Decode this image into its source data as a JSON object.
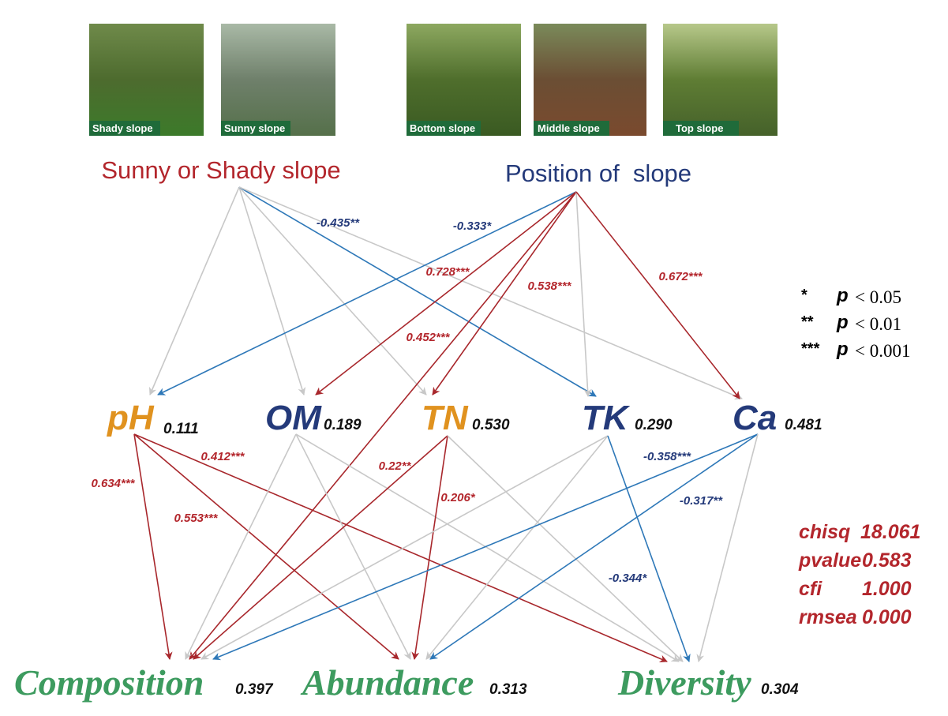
{
  "photos": [
    "Shady slope",
    "Sunny slope",
    "Bottom slope",
    "Middle slope",
    "Top slope"
  ],
  "drivers": [
    "Sunny or Shady slope",
    "Position of  slope"
  ],
  "soil": [
    {
      "name": "pH",
      "r2": "0.111"
    },
    {
      "name": "OM",
      "r2": "0.189"
    },
    {
      "name": "TN",
      "r2": "0.530"
    },
    {
      "name": "TK",
      "r2": "0.290"
    },
    {
      "name": "Ca",
      "r2": "0.481"
    }
  ],
  "outcomes": [
    {
      "name": "Composition",
      "r2": "0.397"
    },
    {
      "name": "Abundance",
      "r2": "0.313"
    },
    {
      "name": "Diversity",
      "r2": "0.304"
    }
  ],
  "path_labels": [
    "-0.435**",
    "-0.333*",
    "0.728***",
    "0.538***",
    "0.672***",
    "0.452***",
    "0.634***",
    "0.553***",
    "0.412***",
    "0.22**",
    "0.206*",
    "-0.344*",
    "-0.358***",
    "-0.317**"
  ],
  "legend": [
    {
      "stars": "*",
      "p": "p",
      "threshold": "< 0.05"
    },
    {
      "stars": "**",
      "p": "p",
      "threshold": "< 0.01"
    },
    {
      "stars": "***",
      "p": "p",
      "threshold": "< 0.001"
    }
  ],
  "fit": [
    {
      "name": "chisq",
      "value": "18.061"
    },
    {
      "name": "pvalue",
      "value": "0.583"
    },
    {
      "name": "cfi",
      "value": "1.000"
    },
    {
      "name": "rmsea",
      "value": "0.000"
    }
  ]
}
